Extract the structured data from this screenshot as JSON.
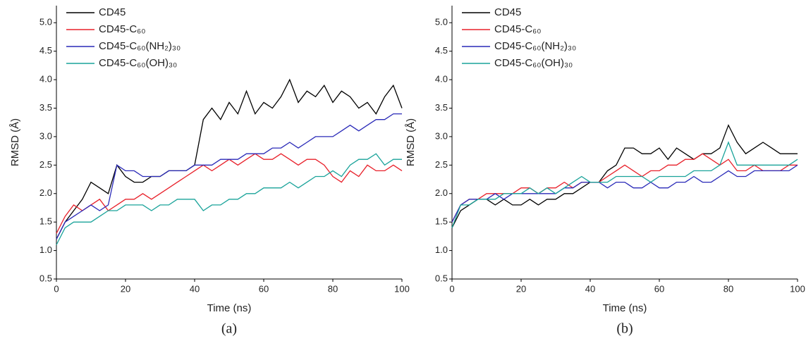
{
  "chart_data": [
    {
      "type": "line",
      "caption": "(a)",
      "xlabel": "Time (ns)",
      "ylabel": "RMSD (Å)",
      "xlim": [
        0,
        100
      ],
      "ylim": [
        0.5,
        5.3
      ],
      "xticks": [
        0,
        20,
        40,
        60,
        80,
        100
      ],
      "yticks": [
        0.5,
        {
          "value": 1,
          "label": "1.0"
        },
        1.5,
        {
          "value": 2,
          "label": "2.0"
        },
        2.5,
        {
          "value": 3,
          "label": "3.0"
        },
        3.5,
        {
          "value": 4,
          "label": "4.0"
        },
        4.5,
        {
          "value": 5,
          "label": "5.0"
        }
      ],
      "legend": "upper left",
      "x": [
        0,
        2.5,
        5,
        7.5,
        10,
        12.5,
        15,
        17.5,
        20,
        22.5,
        25,
        27.5,
        30,
        32.5,
        35,
        37.5,
        40,
        42.5,
        45,
        47.5,
        50,
        52.5,
        55,
        57.5,
        60,
        62.5,
        65,
        67.5,
        70,
        72.5,
        75,
        77.5,
        80,
        82.5,
        85,
        87.5,
        90,
        92.5,
        95,
        97.5,
        100
      ],
      "series": [
        {
          "name": "CD45",
          "color": "#000000",
          "values": [
            1.2,
            1.5,
            1.7,
            1.9,
            2.2,
            2.1,
            2.0,
            2.5,
            2.3,
            2.2,
            2.2,
            2.3,
            2.3,
            2.4,
            2.4,
            2.4,
            2.5,
            3.3,
            3.5,
            3.3,
            3.6,
            3.4,
            3.8,
            3.4,
            3.6,
            3.5,
            3.7,
            4.0,
            3.6,
            3.8,
            3.7,
            3.9,
            3.6,
            3.8,
            3.7,
            3.5,
            3.6,
            3.4,
            3.7,
            3.9,
            3.5
          ]
        },
        {
          "name": "CD45-C₆₀",
          "color": "#e8202a",
          "values": [
            1.3,
            1.6,
            1.8,
            1.7,
            1.8,
            1.9,
            1.7,
            1.8,
            1.9,
            1.9,
            2.0,
            1.9,
            2.0,
            2.1,
            2.2,
            2.3,
            2.4,
            2.5,
            2.4,
            2.5,
            2.6,
            2.5,
            2.6,
            2.7,
            2.6,
            2.6,
            2.7,
            2.6,
            2.5,
            2.6,
            2.6,
            2.5,
            2.3,
            2.2,
            2.4,
            2.3,
            2.5,
            2.4,
            2.4,
            2.5,
            2.4
          ]
        },
        {
          "name": "CD45-C₆₀(NH₂)₃₀",
          "color": "#2a2ab8",
          "values": [
            1.2,
            1.5,
            1.6,
            1.7,
            1.8,
            1.7,
            1.8,
            2.5,
            2.4,
            2.4,
            2.3,
            2.3,
            2.3,
            2.4,
            2.4,
            2.4,
            2.5,
            2.5,
            2.5,
            2.6,
            2.6,
            2.6,
            2.7,
            2.7,
            2.7,
            2.8,
            2.8,
            2.9,
            2.8,
            2.9,
            3.0,
            3.0,
            3.0,
            3.1,
            3.2,
            3.1,
            3.2,
            3.3,
            3.3,
            3.4,
            3.4
          ]
        },
        {
          "name": "CD45-C₆₀(OH)₃₀",
          "color": "#1aa39a",
          "values": [
            1.1,
            1.4,
            1.5,
            1.5,
            1.5,
            1.6,
            1.7,
            1.7,
            1.8,
            1.8,
            1.8,
            1.7,
            1.8,
            1.8,
            1.9,
            1.9,
            1.9,
            1.7,
            1.8,
            1.8,
            1.9,
            1.9,
            2.0,
            2.0,
            2.1,
            2.1,
            2.1,
            2.2,
            2.1,
            2.2,
            2.3,
            2.3,
            2.4,
            2.3,
            2.5,
            2.6,
            2.6,
            2.7,
            2.5,
            2.6,
            2.6
          ]
        }
      ]
    },
    {
      "type": "line",
      "caption": "(b)",
      "xlabel": "Time (ns)",
      "ylabel": "RMSD (Å)",
      "xlim": [
        0,
        100
      ],
      "ylim": [
        0.5,
        5.3
      ],
      "xticks": [
        0,
        20,
        40,
        60,
        80,
        100
      ],
      "yticks": [
        0.5,
        {
          "value": 1,
          "label": "1.0"
        },
        1.5,
        {
          "value": 2,
          "label": "2.0"
        },
        2.5,
        {
          "value": 3,
          "label": "3.0"
        },
        3.5,
        {
          "value": 4,
          "label": "4.0"
        },
        4.5,
        {
          "value": 5,
          "label": "5.0"
        }
      ],
      "legend": "upper left",
      "x": [
        0,
        2.5,
        5,
        7.5,
        10,
        12.5,
        15,
        17.5,
        20,
        22.5,
        25,
        27.5,
        30,
        32.5,
        35,
        37.5,
        40,
        42.5,
        45,
        47.5,
        50,
        52.5,
        55,
        57.5,
        60,
        62.5,
        65,
        67.5,
        70,
        72.5,
        75,
        77.5,
        80,
        82.5,
        85,
        87.5,
        90,
        92.5,
        95,
        97.5,
        100
      ],
      "series": [
        {
          "name": "CD45",
          "color": "#000000",
          "values": [
            1.4,
            1.7,
            1.8,
            1.9,
            1.9,
            1.8,
            1.9,
            1.8,
            1.8,
            1.9,
            1.8,
            1.9,
            1.9,
            2.0,
            2.0,
            2.1,
            2.2,
            2.2,
            2.4,
            2.5,
            2.8,
            2.8,
            2.7,
            2.7,
            2.8,
            2.6,
            2.8,
            2.7,
            2.6,
            2.7,
            2.7,
            2.8,
            3.2,
            2.9,
            2.7,
            2.8,
            2.9,
            2.8,
            2.7,
            2.7,
            2.7
          ]
        },
        {
          "name": "CD45-C₆₀",
          "color": "#e8202a",
          "values": [
            1.5,
            1.8,
            1.9,
            1.9,
            2.0,
            2.0,
            2.0,
            2.0,
            2.1,
            2.1,
            2.0,
            2.1,
            2.1,
            2.2,
            2.1,
            2.2,
            2.2,
            2.2,
            2.3,
            2.4,
            2.5,
            2.4,
            2.3,
            2.4,
            2.4,
            2.5,
            2.5,
            2.6,
            2.6,
            2.7,
            2.6,
            2.5,
            2.6,
            2.4,
            2.4,
            2.5,
            2.4,
            2.4,
            2.4,
            2.5,
            2.5
          ]
        },
        {
          "name": "CD45-C₆₀(NH₂)₃₀",
          "color": "#2a2ab8",
          "values": [
            1.5,
            1.8,
            1.9,
            1.9,
            1.9,
            2.0,
            1.9,
            2.0,
            2.0,
            2.0,
            2.0,
            2.0,
            2.0,
            2.1,
            2.1,
            2.2,
            2.2,
            2.2,
            2.1,
            2.2,
            2.2,
            2.1,
            2.1,
            2.2,
            2.1,
            2.1,
            2.2,
            2.2,
            2.3,
            2.2,
            2.2,
            2.3,
            2.4,
            2.3,
            2.3,
            2.4,
            2.4,
            2.4,
            2.4,
            2.4,
            2.5
          ]
        },
        {
          "name": "CD45-C₆₀(OH)₃₀",
          "color": "#1aa39a",
          "values": [
            1.4,
            1.8,
            1.8,
            1.9,
            1.9,
            1.9,
            2.0,
            2.0,
            2.0,
            2.1,
            2.0,
            2.1,
            2.0,
            2.1,
            2.2,
            2.3,
            2.2,
            2.2,
            2.2,
            2.3,
            2.3,
            2.3,
            2.3,
            2.2,
            2.3,
            2.3,
            2.3,
            2.3,
            2.4,
            2.4,
            2.4,
            2.5,
            2.9,
            2.5,
            2.5,
            2.5,
            2.5,
            2.5,
            2.5,
            2.5,
            2.6
          ]
        }
      ]
    }
  ]
}
